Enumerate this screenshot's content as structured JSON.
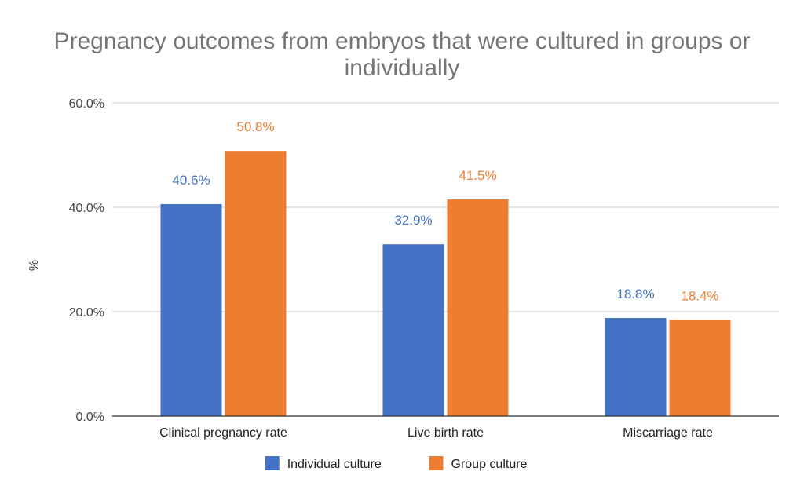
{
  "chart_data": {
    "type": "bar",
    "title": "Pregnancy outcomes from embryos that were cultured in groups or individually",
    "title_lines": [
      "Pregnancy outcomes from embryos that were cultured in groups or",
      "individually"
    ],
    "xlabel": "",
    "ylabel": "%",
    "categories": [
      "Clinical pregnancy rate",
      "Live birth rate",
      "Miscarriage rate"
    ],
    "series": [
      {
        "name": "Individual culture",
        "color": "#4472c4",
        "values": [
          40.6,
          32.9,
          18.8
        ],
        "labels": [
          "40.6%",
          "32.9%",
          "18.8%"
        ]
      },
      {
        "name": "Group culture",
        "color": "#ed7d31",
        "values": [
          50.8,
          41.5,
          18.4
        ],
        "labels": [
          "50.8%",
          "41.5%",
          "18.4%"
        ]
      }
    ],
    "ylim": [
      0,
      60
    ],
    "yticks": [
      0,
      20,
      40,
      60
    ],
    "ytick_labels": [
      "0.0%",
      "20.0%",
      "40.0%",
      "60.0%"
    ],
    "grid": true,
    "legend_position": "bottom"
  }
}
